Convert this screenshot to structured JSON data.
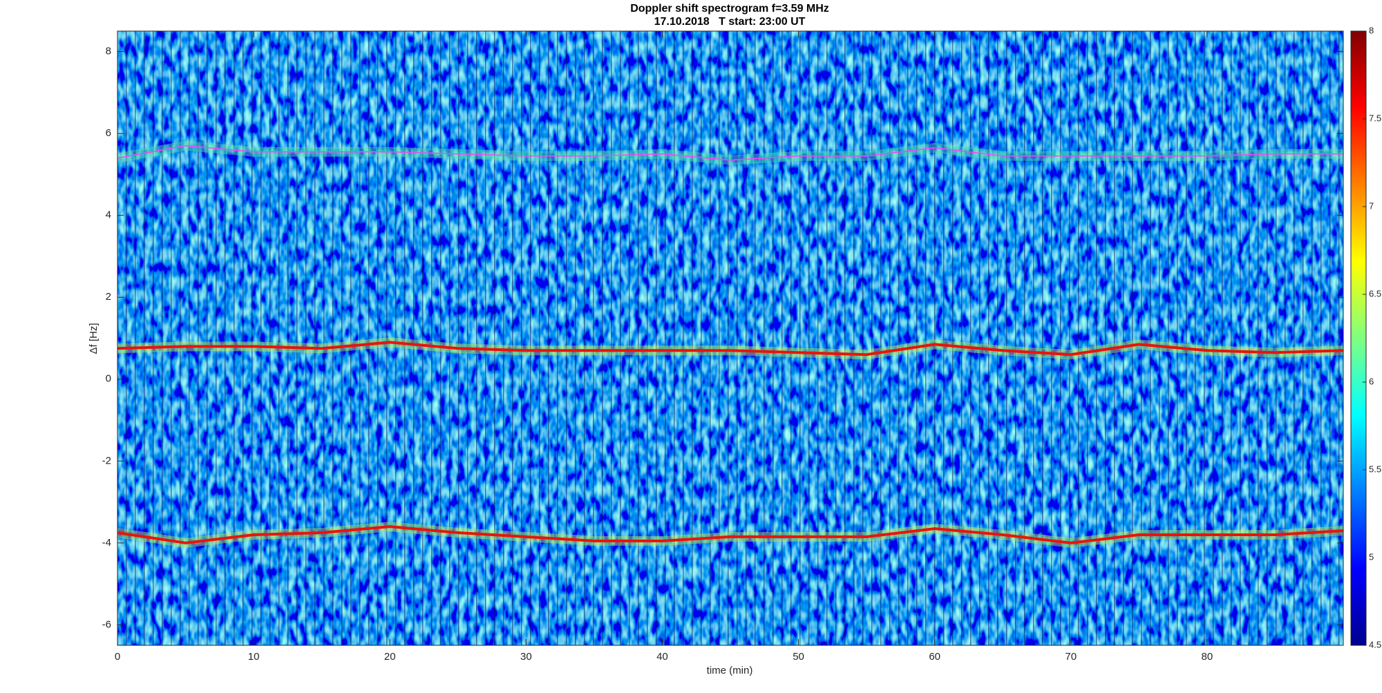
{
  "chart_data": {
    "type": "spectrogram",
    "title": "Doppler shift spectrogram f=3.59 MHz",
    "subtitle": "17.10.2018   T start: 23:00 UT",
    "xlabel": "time (min)",
    "ylabel": "Δf [Hz]",
    "xlim": [
      0,
      90
    ],
    "xticks": [
      0,
      10,
      20,
      30,
      40,
      50,
      60,
      70,
      80
    ],
    "ylim": [
      -6.5,
      8.5
    ],
    "yticks": [
      -6,
      -4,
      -2,
      0,
      2,
      4,
      6,
      8
    ],
    "colormap": "jet",
    "clim": [
      4.5,
      8
    ],
    "cticks": [
      4.5,
      5,
      5.5,
      6,
      6.5,
      7,
      7.5,
      8
    ],
    "x": [
      0,
      5,
      10,
      15,
      20,
      25,
      30,
      35,
      40,
      45,
      50,
      55,
      60,
      65,
      70,
      75,
      80,
      85,
      90
    ],
    "series": [
      {
        "color": "#ff40ff",
        "glow": "#5fe8a0",
        "values": [
          5.4,
          5.7,
          5.55,
          5.55,
          5.55,
          5.5,
          5.45,
          5.45,
          5.5,
          5.35,
          5.45,
          5.45,
          5.65,
          5.45,
          5.45,
          5.45,
          5.45,
          5.5,
          5.5
        ]
      },
      {
        "color": "#e8140c",
        "glow": "#c8f040",
        "values": [
          0.75,
          0.8,
          0.8,
          0.75,
          0.9,
          0.75,
          0.7,
          0.7,
          0.7,
          0.7,
          0.65,
          0.6,
          0.85,
          0.7,
          0.6,
          0.85,
          0.7,
          0.65,
          0.7
        ]
      },
      {
        "color": "#e8140c",
        "glow": "#c8f040",
        "values": [
          -3.75,
          -4.0,
          -3.8,
          -3.75,
          -3.6,
          -3.75,
          -3.85,
          -3.95,
          -3.95,
          -3.85,
          -3.85,
          -3.85,
          -3.65,
          -3.8,
          -4.0,
          -3.8,
          -3.8,
          -3.8,
          -3.7
        ]
      }
    ]
  }
}
